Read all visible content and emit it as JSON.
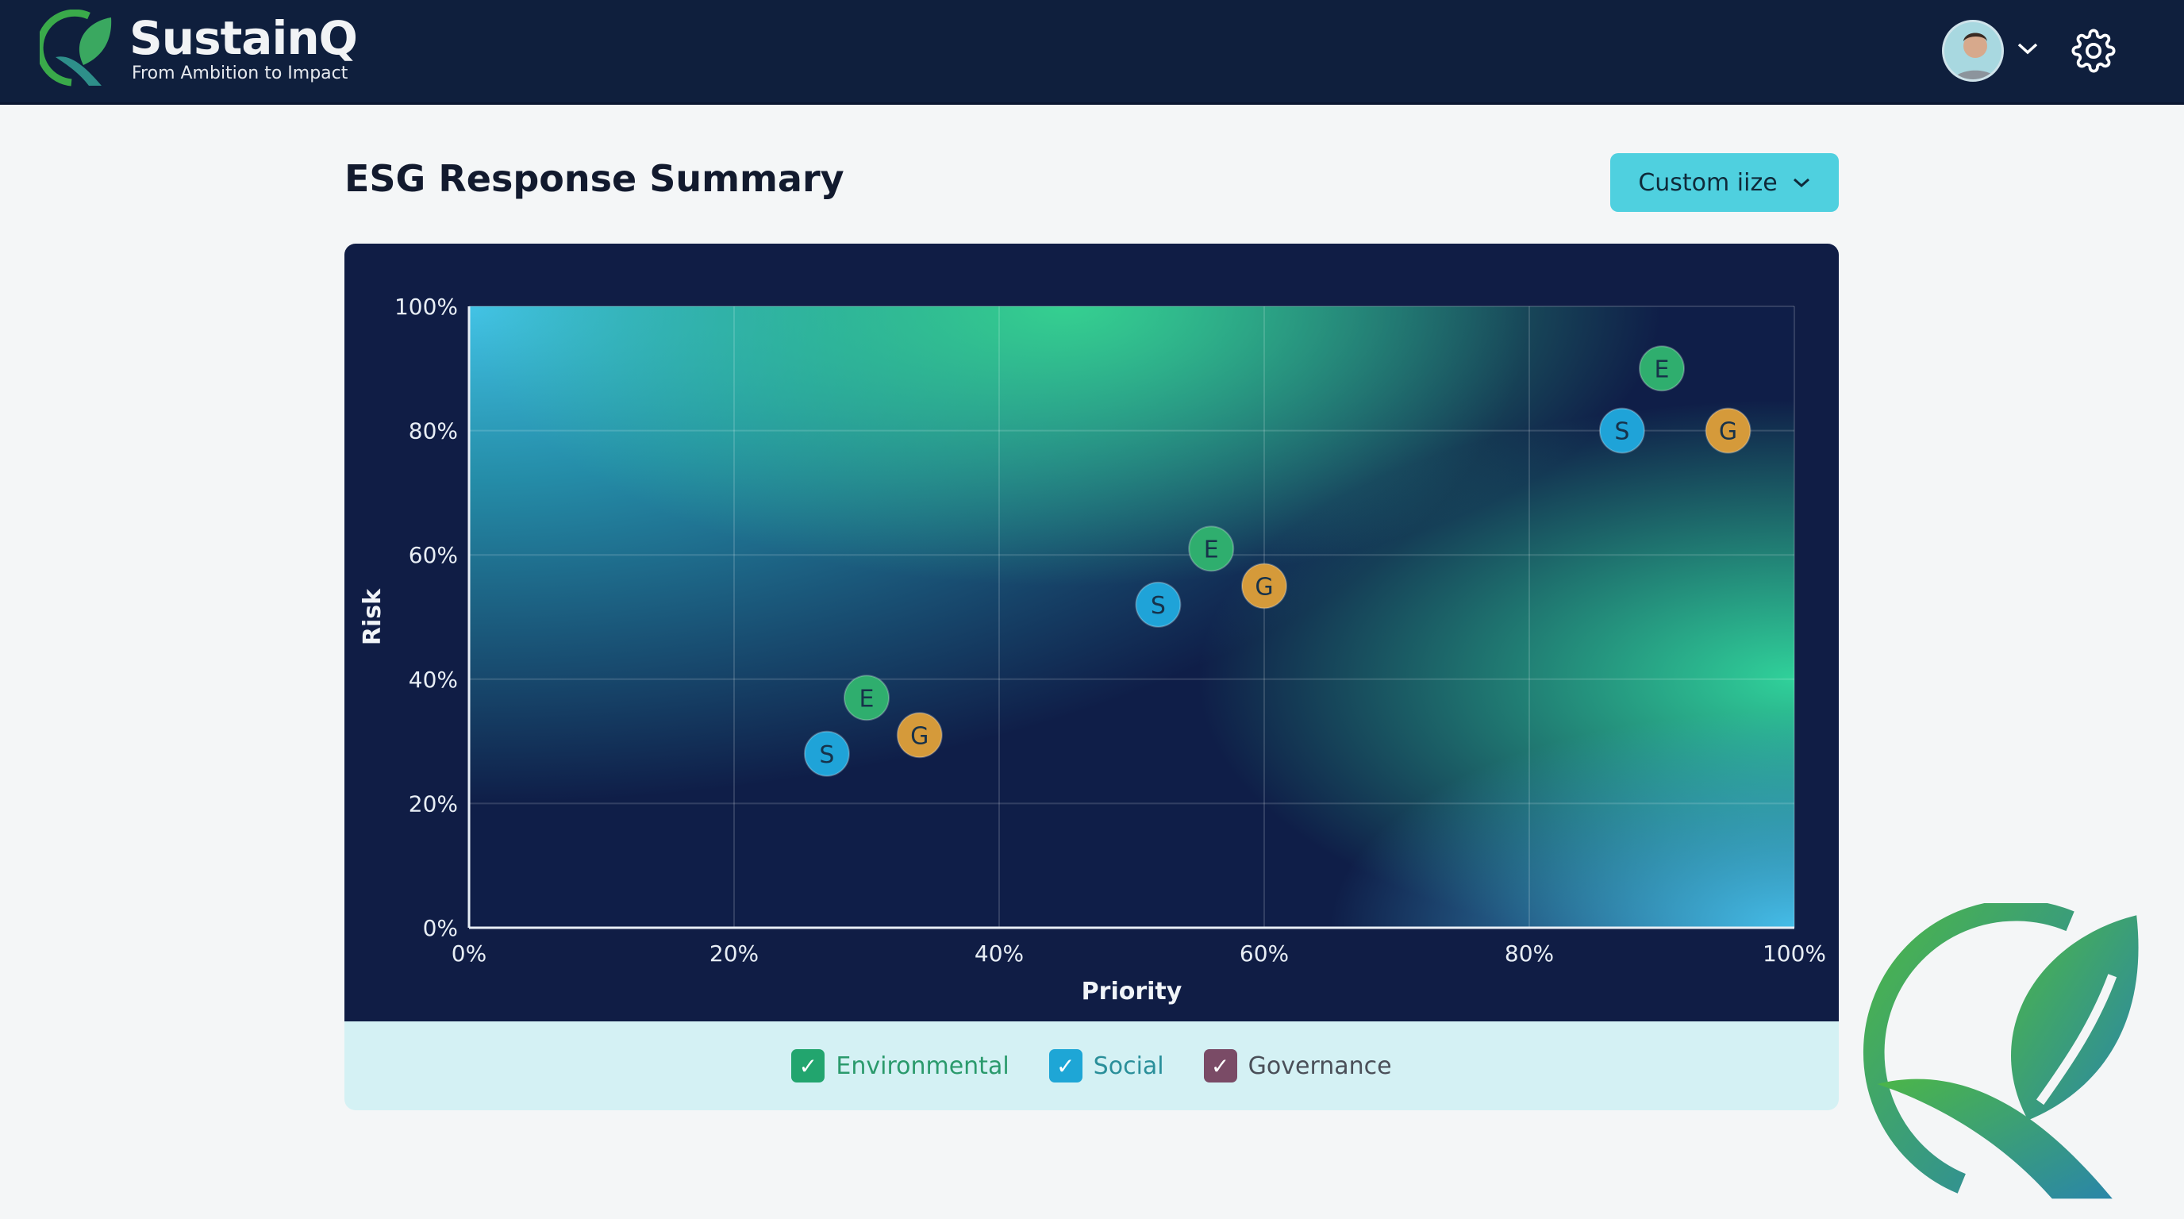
{
  "header": {
    "brand": "SustainQ",
    "tagline": "From Ambition to Impact",
    "user_avatar_icon": "user-avatar",
    "menu_icon": "chevron-down-icon",
    "settings_icon": "gear-icon"
  },
  "page": {
    "title": "ESG Response Summary",
    "customize_label": "Custom iize"
  },
  "legend": [
    {
      "label": "Environmental",
      "color": "#22a56e",
      "text_color": "#2a9a6c",
      "checked": true
    },
    {
      "label": "Social",
      "color": "#1ea6d6",
      "text_color": "#2a8f9a",
      "checked": true
    },
    {
      "label": "Governance",
      "color": "#7a4b66",
      "text_color": "#4a4f58",
      "checked": true
    }
  ],
  "chart_data": {
    "type": "scatter",
    "xlabel": "Priority",
    "ylabel": "Risk",
    "xlim": [
      0,
      100
    ],
    "ylim": [
      0,
      100
    ],
    "x_ticks": [
      "0%",
      "20%",
      "40%",
      "60%",
      "80%",
      "100%"
    ],
    "y_ticks": [
      "0%",
      "20%",
      "40%",
      "60%",
      "80%",
      "100%"
    ],
    "grid": true,
    "background": "heatmap gradient",
    "series": [
      {
        "name": "Environmental",
        "marker": "E",
        "color": "#2fae6e",
        "points": [
          [
            30,
            37
          ],
          [
            56,
            61
          ],
          [
            90,
            90
          ]
        ]
      },
      {
        "name": "Social",
        "marker": "S",
        "color": "#1fa3d8",
        "points": [
          [
            27,
            28
          ],
          [
            52,
            52
          ],
          [
            87,
            80
          ]
        ]
      },
      {
        "name": "Governance",
        "marker": "G",
        "color": "#d59a3a",
        "points": [
          [
            34,
            31
          ],
          [
            60,
            55
          ],
          [
            95,
            80
          ]
        ]
      }
    ]
  }
}
